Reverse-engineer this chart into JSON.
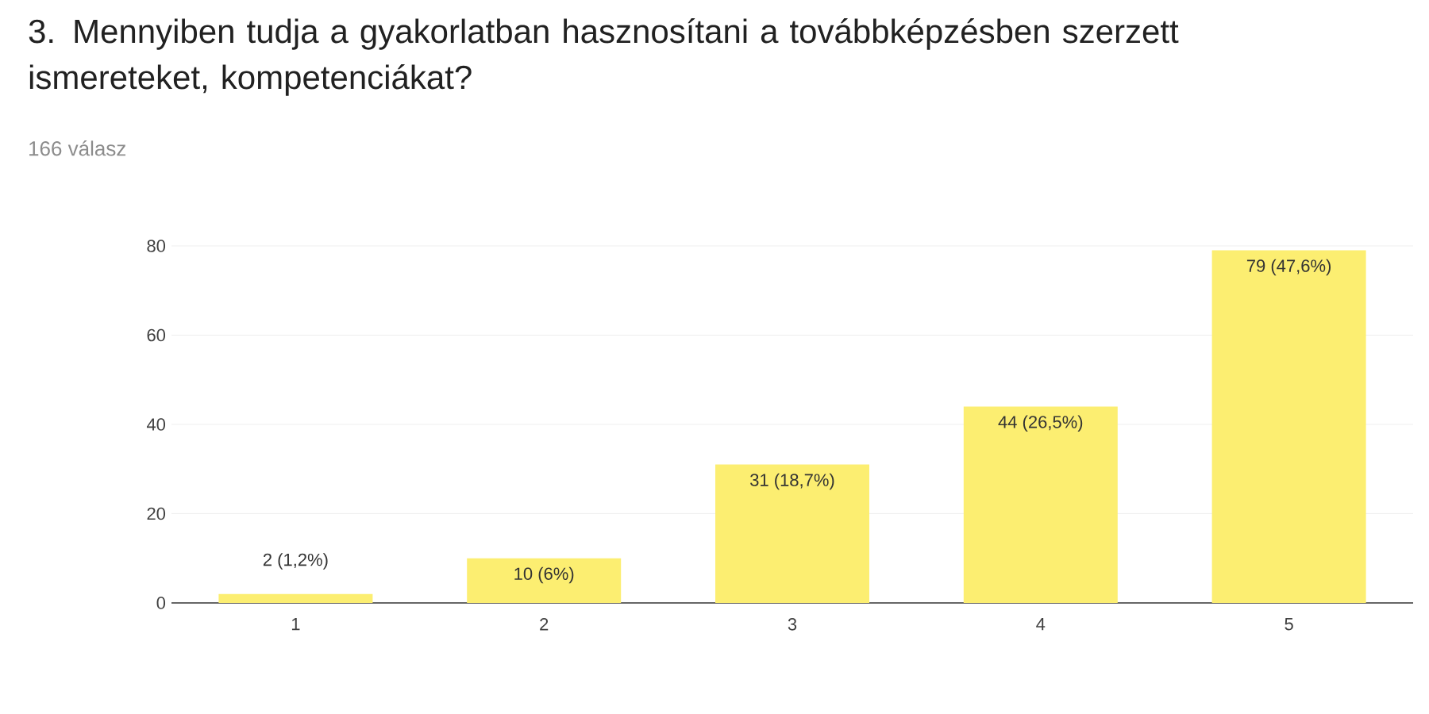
{
  "chart_data": {
    "type": "bar",
    "title": "3. Mennyiben tudja a gyakorlatban hasznosítani a továbbképzésben szerzett ismereteket, kompetenciákat?",
    "subtitle": "166 válasz",
    "categories": [
      "1",
      "2",
      "3",
      "4",
      "5"
    ],
    "values": [
      2,
      10,
      31,
      44,
      79
    ],
    "value_labels": [
      "2 (1,2%)",
      "10 (6%)",
      "31 (18,7%)",
      "44 (26,5%)",
      "79 (47,6%)"
    ],
    "color": "#fcee71",
    "ylim": [
      0,
      80
    ],
    "yticks": [
      0,
      20,
      40,
      60,
      80
    ],
    "grid": "y"
  }
}
